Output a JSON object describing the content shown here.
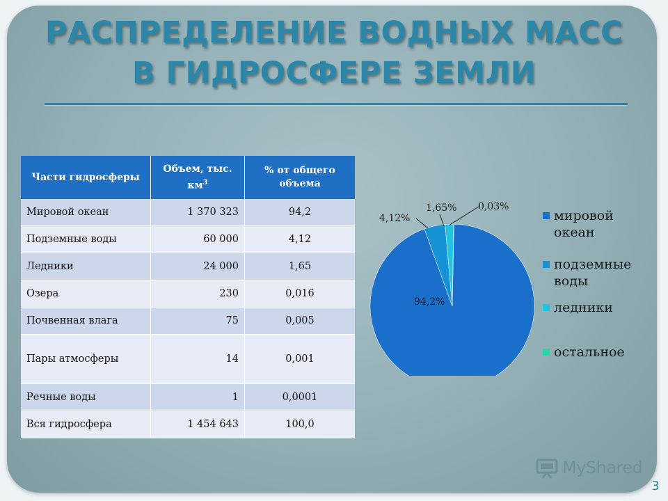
{
  "slide": {
    "title_line1": "РАСПРЕДЕЛЕНИЕ ВОДНЫХ МАСС",
    "title_line2": "В ГИДРОСФЕРЕ ЗЕМЛИ",
    "page_number": "3",
    "logo_text": "MyShared",
    "logo_icon": "presentation-board-icon"
  },
  "table": {
    "headers": [
      "Части гидросферы",
      "Объем, тыс. км",
      "% от общего объема"
    ],
    "header_superscript": "3",
    "rows": [
      [
        "Мировой океан",
        "1 370 323",
        "94,2"
      ],
      [
        "Подземные воды",
        "60 000",
        "4,12"
      ],
      [
        "Ледники",
        "24 000",
        "1,65"
      ],
      [
        "Озера",
        "230",
        "0,016"
      ],
      [
        "Почвенная влага",
        "75",
        "0,005"
      ],
      [
        "Пары атмосферы",
        "14",
        "0,001"
      ],
      [
        "Речные воды",
        "1",
        "0,0001"
      ],
      [
        "Вся гидросфера",
        "1 454 643",
        "100,0"
      ]
    ]
  },
  "chart_data": {
    "type": "pie",
    "title": "",
    "categories": [
      "мировой океан",
      "подземные воды",
      "ледники",
      "остальное"
    ],
    "values": [
      94.2,
      4.12,
      1.65,
      0.03
    ],
    "data_labels": [
      "94,2%",
      "4,12%",
      "1,65%",
      "0,03%"
    ],
    "colors": [
      "#1a6fcb",
      "#1593d6",
      "#22c4e0",
      "#2ad4a8"
    ],
    "legend": {
      "placement": "right",
      "entries": [
        "мировой океан",
        "подземные воды",
        "ледники",
        "остальное"
      ]
    }
  }
}
